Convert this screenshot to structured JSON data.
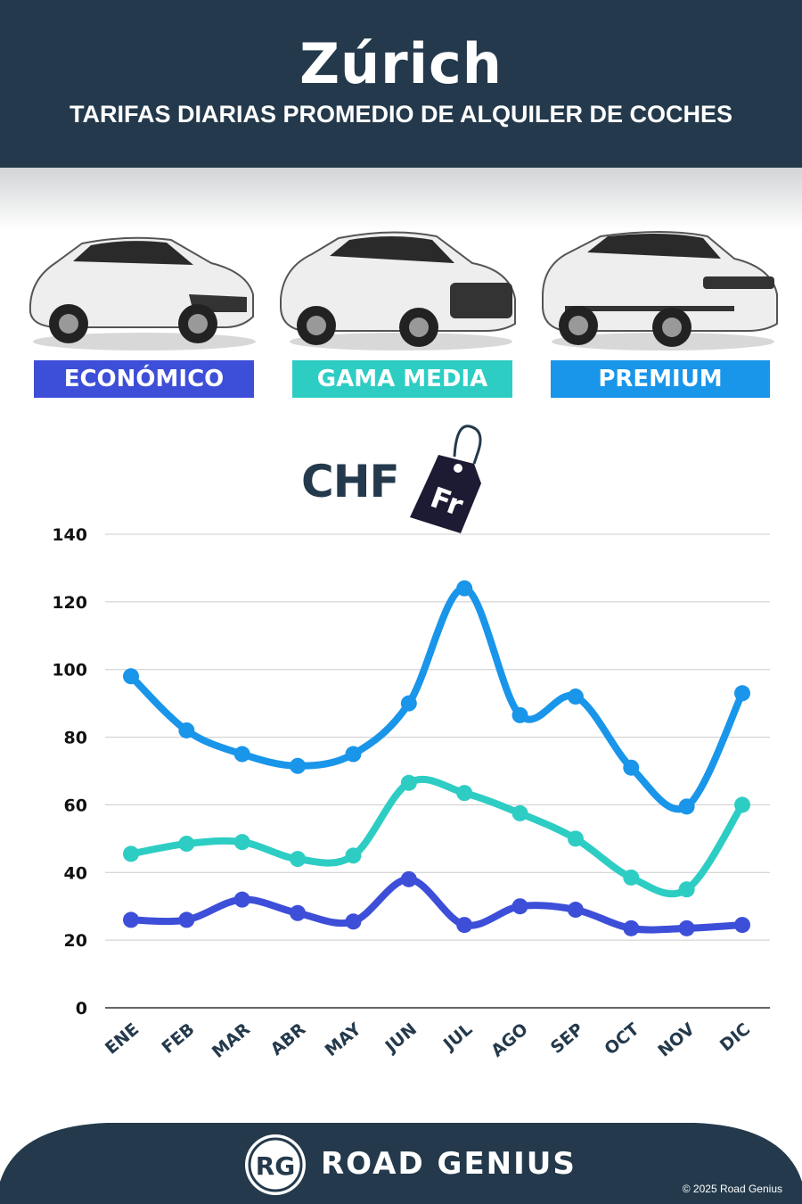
{
  "header": {
    "title": "Zúrich",
    "subtitle": "TARIFAS DIARIAS PROMEDIO DE ALQUILER DE COCHES"
  },
  "categories_labels": [
    "ECONÓMICO",
    "GAMA MEDIA",
    "PREMIUM"
  ],
  "currency": {
    "label": "CHF",
    "tag_text": "Fr"
  },
  "colors": {
    "economico": "#3d4fd8",
    "gama_media": "#2ecdc4",
    "premium": "#1995ea",
    "dark": "#243a4c"
  },
  "chart_data": {
    "type": "line",
    "categories": [
      "ENE",
      "FEB",
      "MAR",
      "ABR",
      "MAY",
      "JUN",
      "JUL",
      "AGO",
      "SEP",
      "OCT",
      "NOV",
      "DIC"
    ],
    "series": [
      {
        "name": "ECONÓMICO",
        "color": "#3d4fd8",
        "values": [
          26,
          26,
          32,
          28,
          25.5,
          38,
          24.5,
          30,
          29,
          23.5,
          23.5,
          24.5
        ]
      },
      {
        "name": "GAMA MEDIA",
        "color": "#2ecdc4",
        "values": [
          45.5,
          48.5,
          49,
          44,
          45,
          66.5,
          63.5,
          57.5,
          50,
          38.5,
          35,
          60
        ]
      },
      {
        "name": "PREMIUM",
        "color": "#1995ea",
        "values": [
          98,
          82,
          75,
          71.5,
          75,
          90,
          124,
          86.5,
          92,
          71,
          59.5,
          93
        ]
      }
    ],
    "yticks": [
      0,
      20,
      40,
      60,
      80,
      100,
      120,
      140
    ],
    "ylim": [
      0,
      140
    ],
    "grid": true
  },
  "footer": {
    "logo_initials": "RG",
    "brand": "ROAD GENIUS",
    "copyright": "© 2025 Road Genius"
  }
}
